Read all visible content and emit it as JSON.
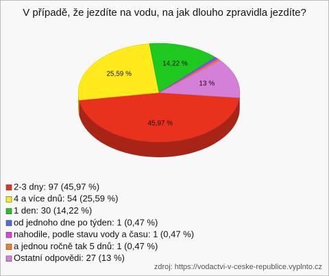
{
  "chart_data": {
    "type": "pie",
    "title": "V případě, že jezdíte na vodu, na jak dlouho zpravidla jezdíte?",
    "categories": [
      "2-3 dny: 97 (45,97 %)",
      "4 a více dnů: 54 (25,59 %)",
      "1 den: 30 (14,22 %)",
      "od jednoho dne po týden: 1 (0,47 %)",
      "nahodile, podle stavu vody a času: 1 (0,47 %)",
      "a jednou ročně tak 5 dnů: 1 (0,47 %)",
      "Ostatní odpovědi: 27 (13 %)"
    ],
    "values": [
      45.97,
      25.59,
      14.22,
      0.47,
      0.47,
      0.47,
      13
    ],
    "value_labels": [
      "45,97 %",
      "25,59 %",
      "14,22 %",
      null,
      null,
      null,
      "13 %"
    ],
    "colors": [
      "#e8321e",
      "#ffea1e",
      "#1ec81e",
      "#4a6cdc",
      "#e040e0",
      "#f08020",
      "#d47fd8"
    ],
    "source": "zdroj: https://vodactvi-v-ceske-republice.vyplnto.cz"
  }
}
